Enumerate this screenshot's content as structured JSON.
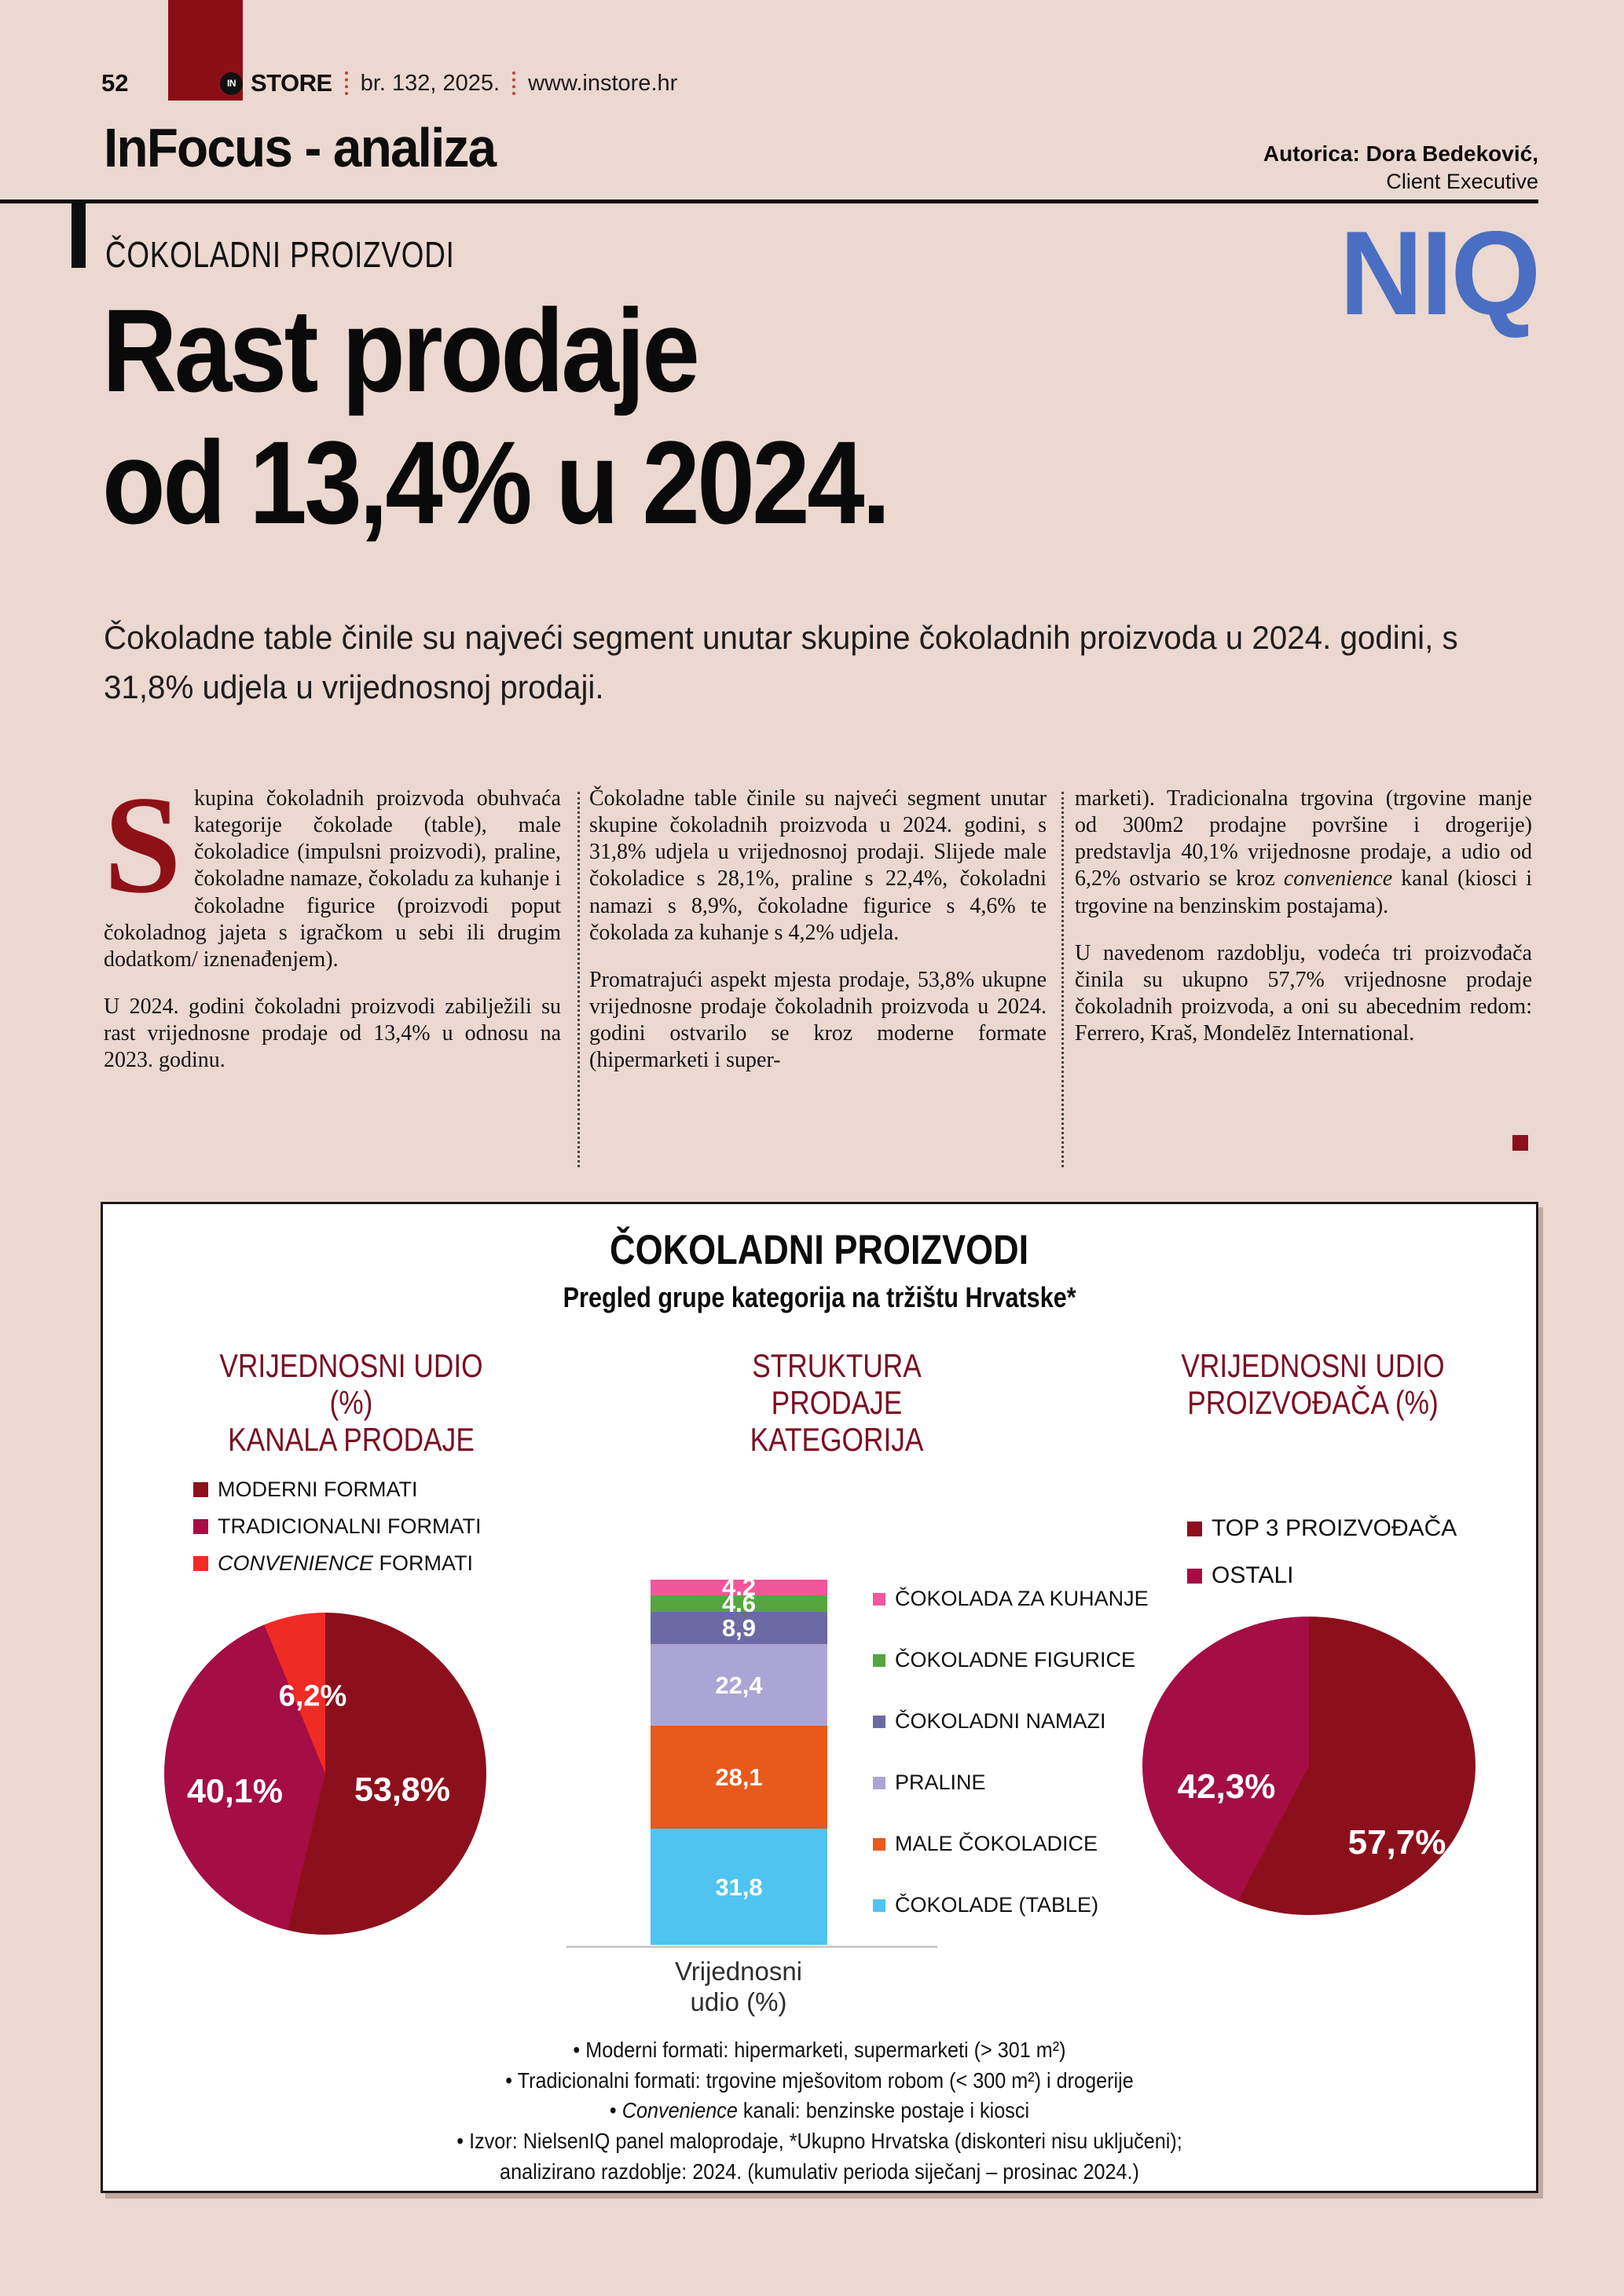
{
  "colors": {
    "page_bg": "#EBD8D0",
    "accent_dark_red": "#8B1016",
    "maroon": "#8C101C",
    "crimson": "#A50D45",
    "bright_red": "#EE2B24",
    "niq_blue": "#4A6FC2",
    "section_header_red": "#7A0F22"
  },
  "masthead": {
    "page_number": "52",
    "logo_in": "IN",
    "logo_store": "STORE",
    "issue": "br. 132, 2025.",
    "website": "www.instore.hr"
  },
  "header": {
    "section": "InFocus - analiza",
    "author": "Autorica: Dora Bedeković,",
    "author_role": "Client Executive",
    "niq_logo": "NIQ",
    "kicker": "ČOKOLADNI PROIZVODI",
    "title_line1": "Rast prodaje",
    "title_line2": "od 13,4% u 2024.",
    "lead": "Čokoladne table činile su najveći segment unutar skupine čokoladnih proizvoda u 2024. godini, s 31,8% udjela u vrijednosnoj prodaji."
  },
  "article": {
    "col1": {
      "dropcap": "S",
      "p1": "kupina čokoladnih proizvoda obuhvaća kategorije čokolade (table), male čokoladice (impulsni proizvodi), praline, čokoladne namaze, čokoladu za kuhanje i čokoladne figurice (proizvodi poput čokoladnog jajeta s igračkom u sebi ili drugim dodatkom/ iznenađenjem).",
      "p2": "U 2024. godini čokoladni proizvodi zabilježili su rast vrijednosne prodaje od 13,4% u odnosu na 2023. godinu."
    },
    "col2": {
      "p1": "Čokoladne table činile su najveći segment unutar skupine čokoladnih proizvoda u 2024. godini, s 31,8% udjela u vrijednosnoj prodaji. Slijede male čokoladice s 28,1%, praline s 22,4%, čokoladni namazi s 8,9%, čokoladne figurice s 4,6% te čokolada za kuhanje s 4,2% udjela.",
      "p2": "Promatrajući aspekt mjesta prodaje, 53,8% ukupne vrijednosne prodaje čokoladnih proizvoda u 2024. godini ostvarilo se kroz moderne formate (hipermarketi i super-"
    },
    "col3": {
      "p1_pre": "marketi). Tradicionalna trgovina (trgovine manje od 300m2 prodajne površine i drogerije) predstavlja 40,1% vrijednosne prodaje, a udio od 6,2% ostvario se kroz ",
      "p1_italic": "convenience",
      "p1_post": " kanal (kiosci i trgovine na benzinskim postajama).",
      "p2": "U navedenom razdoblju, vodeća tri proizvođača činila su ukupno 57,7% vrijednosne prodaje čokoladnih proizvoda, a oni su abecednim redom: Ferrero, Kraš, Mondelēz International."
    }
  },
  "chart_box": {
    "title": "ČOKOLADNI PROIZVODI",
    "subtitle": "Pregled grupe kategorija na tržištu Hrvatske*",
    "sections": [
      {
        "line1": "VRIJEDNOSNI UDIO (%)",
        "line2": "KANALA PRODAJE"
      },
      {
        "line1": "STRUKTURA",
        "line2": "PRODAJE KATEGORIJA"
      },
      {
        "line1": "VRIJEDNOSNI UDIO",
        "line2": "PROIZVOĐAČA (%)"
      }
    ],
    "axis_label_line1": "Vrijednosni",
    "axis_label_line2": "udio (%)",
    "footnotes": [
      {
        "parts": [
          {
            "t": "•   Moderni formati: hipermarketi, supermarketi (> 301 m²)"
          }
        ]
      },
      {
        "parts": [
          {
            "t": "•   Tradicionalni formati: trgovine mješovitom robom (< 300 m²) i drogerije"
          }
        ]
      },
      {
        "parts": [
          {
            "t": "•   "
          },
          {
            "t": "Convenience",
            "i": true
          },
          {
            "t": " kanali: benzinske postaje i kiosci"
          }
        ]
      },
      {
        "parts": [
          {
            "t": "•   Izvor: NielsenIQ panel maloprodaje, *Ukupno Hrvatska (diskonteri nisu uključeni);"
          }
        ]
      },
      {
        "parts": [
          {
            "t": "analizirano razdoblje: 2024. (kumulativ perioda siječanj – prosinac 2024.)"
          }
        ]
      }
    ]
  },
  "chart_data": [
    {
      "type": "pie",
      "title": "VRIJEDNOSNI UDIO (%) KANALA PRODAJE",
      "legend_position": "top-left",
      "segments": [
        {
          "name": "MODERNI FORMATI",
          "value": 53.8,
          "label": "53,8%",
          "color": "#8C101C",
          "italic": false
        },
        {
          "name": "TRADICIONALNI FORMATI",
          "value": 40.1,
          "label": "40,1%",
          "color": "#A50D45",
          "italic": false
        },
        {
          "name": "CONVENIENCE FORMATI",
          "value": 6.2,
          "label": "6,2%",
          "color": "#EE2B24",
          "italic": true
        }
      ]
    },
    {
      "type": "bar",
      "stacked": true,
      "title": "STRUKTURA PRODAJE KATEGORIJA",
      "categories": [
        "Vrijednosni udio (%)"
      ],
      "ylim": [
        0,
        100
      ],
      "grid": false,
      "legend_position": "right",
      "segments_bottom_to_top": [
        {
          "name": "ČOKOLADE (TABLE)",
          "value": 31.8,
          "label": "31,8",
          "color": "#4FC4F0"
        },
        {
          "name": "MALE ČOKOLADICE",
          "value": 28.1,
          "label": "28,1",
          "color": "#E8591C"
        },
        {
          "name": "PRALINE",
          "value": 22.4,
          "label": "22,4",
          "color": "#ABA5D5"
        },
        {
          "name": "ČOKOLADNI NAMAZI",
          "value": 8.9,
          "label": "8,9",
          "color": "#6C69A4"
        },
        {
          "name": "ČOKOLADNE FIGURICE",
          "value": 4.6,
          "label": "4,6",
          "color": "#57A540"
        },
        {
          "name": "ČOKOLADA ZA KUHANJE",
          "value": 4.2,
          "label": "4,2",
          "color": "#F2579C"
        }
      ]
    },
    {
      "type": "pie",
      "title": "VRIJEDNOSNI UDIO PROIZVOĐAČA (%)",
      "legend_position": "top",
      "segments": [
        {
          "name": "TOP 3 PROIZVOĐAČA",
          "value": 57.7,
          "label": "57,7%",
          "color": "#8C101C",
          "italic": false
        },
        {
          "name": "OSTALI",
          "value": 42.3,
          "label": "42,3%",
          "color": "#A50D45",
          "italic": false
        }
      ]
    }
  ]
}
